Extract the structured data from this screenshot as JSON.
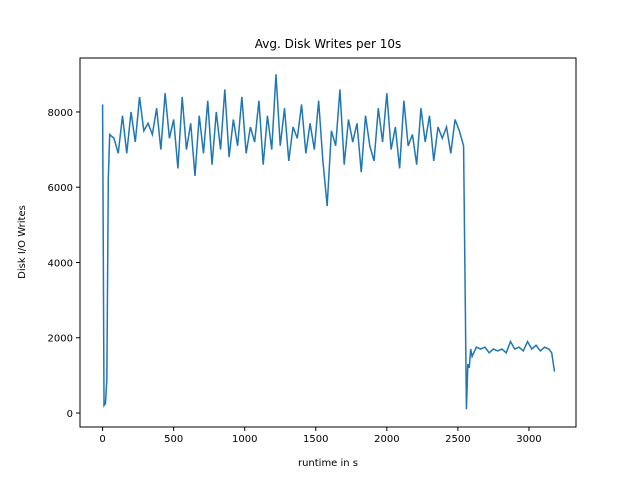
{
  "chart_data": {
    "type": "line",
    "title": "Avg. Disk Writes per 10s",
    "x_label": "runtime in s",
    "y_label": "Disk I/O Writes",
    "xlim": [
      -159,
      3331
    ],
    "ylim": [
      -372,
      9434
    ],
    "xticks": [
      0,
      500,
      1000,
      1500,
      2000,
      2500,
      3000
    ],
    "yticks": [
      0,
      2000,
      4000,
      6000,
      8000
    ],
    "series": [
      {
        "color": "#1f77b4",
        "x": [
          0,
          10,
          20,
          30,
          40,
          50,
          80,
          110,
          140,
          170,
          200,
          230,
          260,
          290,
          320,
          350,
          380,
          410,
          440,
          470,
          500,
          530,
          560,
          590,
          620,
          650,
          680,
          710,
          740,
          770,
          800,
          830,
          860,
          890,
          920,
          950,
          980,
          1010,
          1040,
          1070,
          1100,
          1130,
          1160,
          1190,
          1220,
          1250,
          1280,
          1310,
          1340,
          1370,
          1400,
          1430,
          1460,
          1490,
          1520,
          1550,
          1580,
          1610,
          1640,
          1670,
          1700,
          1730,
          1760,
          1790,
          1820,
          1850,
          1880,
          1910,
          1940,
          1970,
          2000,
          2030,
          2060,
          2090,
          2120,
          2150,
          2180,
          2210,
          2240,
          2270,
          2300,
          2330,
          2360,
          2390,
          2420,
          2450,
          2480,
          2510,
          2540,
          2560,
          2570,
          2580,
          2590,
          2600,
          2630,
          2660,
          2690,
          2720,
          2750,
          2780,
          2810,
          2840,
          2870,
          2900,
          2930,
          2960,
          2990,
          3020,
          3050,
          3080,
          3110,
          3140,
          3160,
          3180
        ],
        "values": [
          8200,
          200,
          250,
          900,
          6200,
          7400,
          7300,
          6900,
          7900,
          6900,
          8000,
          7200,
          8400,
          7500,
          7700,
          7400,
          8100,
          7000,
          8500,
          7300,
          7800,
          6500,
          8400,
          7000,
          7700,
          6300,
          7900,
          6900,
          8300,
          6600,
          8000,
          7000,
          8600,
          6800,
          7800,
          7100,
          8400,
          6900,
          7600,
          7200,
          8300,
          6600,
          7900,
          7000,
          9000,
          7100,
          8100,
          6700,
          7600,
          7300,
          8200,
          6900,
          7700,
          7000,
          8300,
          6700,
          5500,
          7500,
          7100,
          8600,
          6600,
          7800,
          7200,
          7700,
          6400,
          7900,
          7100,
          6700,
          8100,
          7200,
          8500,
          7000,
          7600,
          6500,
          8300,
          7100,
          7400,
          6600,
          8100,
          7200,
          7900,
          6700,
          7600,
          7300,
          7600,
          6900,
          7800,
          7500,
          7100,
          100,
          1300,
          1200,
          1700,
          1500,
          1750,
          1700,
          1750,
          1600,
          1700,
          1650,
          1700,
          1600,
          1900,
          1700,
          1750,
          1650,
          1900,
          1700,
          1800,
          1650,
          1750,
          1700,
          1600,
          1100
        ]
      }
    ]
  }
}
